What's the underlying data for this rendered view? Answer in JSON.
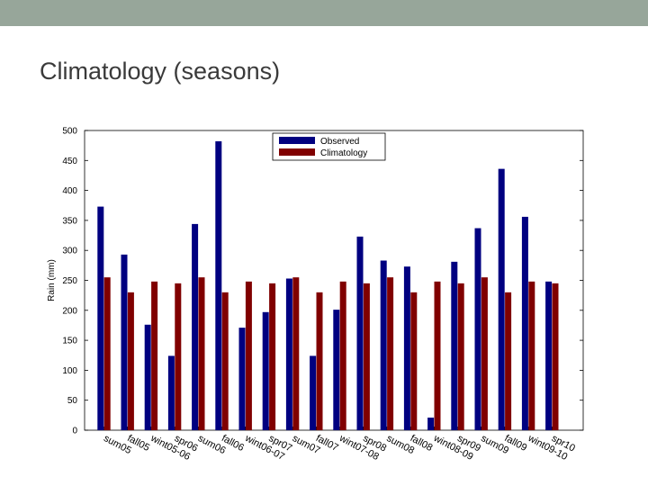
{
  "slide": {
    "title": "Climatology (seasons)",
    "accent_bar_color": "#97a69a"
  },
  "chart_data": {
    "type": "bar",
    "title": "",
    "xlabel": "",
    "ylabel": "Rain (mm)",
    "ylim": [
      0,
      500
    ],
    "yticks": [
      0,
      50,
      100,
      150,
      200,
      250,
      300,
      350,
      400,
      450,
      500
    ],
    "grid": false,
    "legend_position": "top-center",
    "categories": [
      "sum05",
      "fall05",
      "wint05-06",
      "spr06",
      "sum06",
      "fall06",
      "wint06-07",
      "spr07",
      "sum07",
      "fall07",
      "wint07-08",
      "spr08",
      "sum08",
      "fall08",
      "wint08-09",
      "spr09",
      "sum09",
      "fall09",
      "wint09-10",
      "spr10"
    ],
    "series": [
      {
        "name": "Observed",
        "color": "#000080",
        "values": [
          373,
          293,
          176,
          124,
          344,
          482,
          171,
          197,
          253,
          124,
          201,
          323,
          283,
          273,
          21,
          281,
          337,
          436,
          356,
          248
        ]
      },
      {
        "name": "Climatology",
        "color": "#800000",
        "values": [
          255,
          230,
          248,
          245,
          255,
          230,
          248,
          245,
          255,
          230,
          248,
          245,
          255,
          230,
          248,
          245,
          255,
          230,
          248,
          245
        ]
      }
    ]
  }
}
